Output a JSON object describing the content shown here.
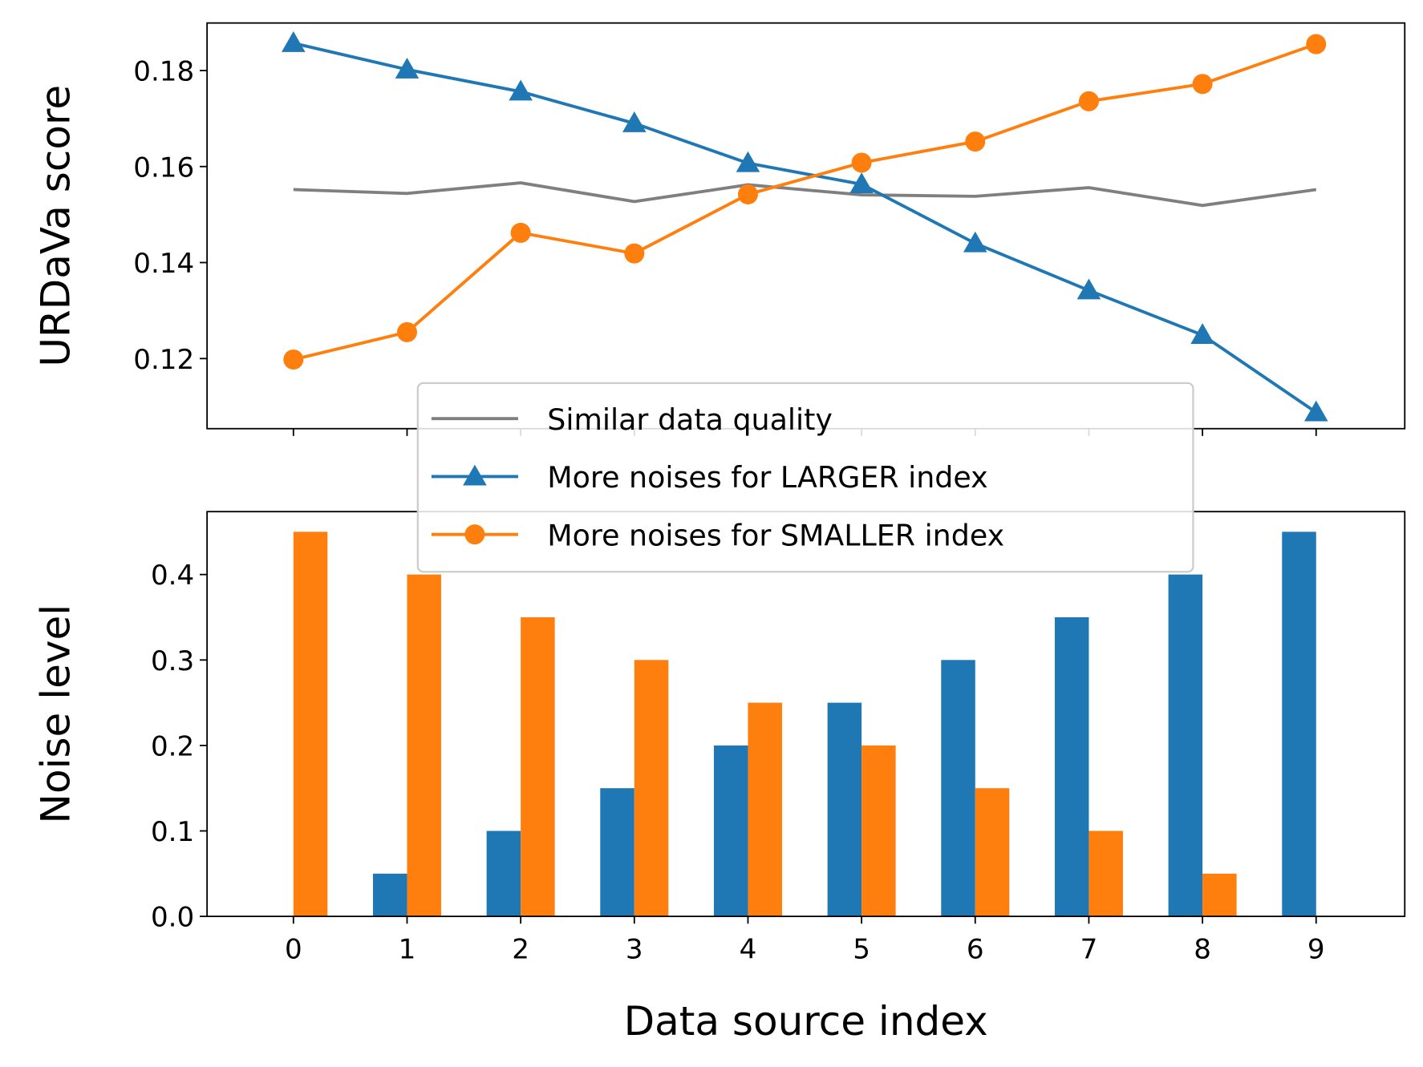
{
  "chart_data": [
    {
      "type": "line",
      "ylabel": "URDaVa score",
      "x": [
        0,
        1,
        2,
        3,
        4,
        5,
        6,
        7,
        8,
        9
      ],
      "xlim": [
        -0.76,
        9.78
      ],
      "xticks": [
        0,
        1,
        2,
        3,
        4,
        5,
        6,
        7,
        8,
        9
      ],
      "ylim": [
        0.1054,
        0.1899
      ],
      "yticks": [
        0.12,
        0.14,
        0.16,
        0.18
      ],
      "legend": "lower center",
      "series": [
        {
          "name": "Similar data quality",
          "color": "#7f7f7f",
          "marker": "none",
          "values": [
            0.1552,
            0.1544,
            0.1566,
            0.1527,
            0.1562,
            0.1541,
            0.1538,
            0.1556,
            0.1519,
            0.1552
          ]
        },
        {
          "name": "More noises for LARGER index",
          "color": "#1f77b4",
          "marker": "triangle",
          "values": [
            0.1857,
            0.1802,
            0.1756,
            0.169,
            0.1607,
            0.1563,
            0.144,
            0.1342,
            0.1249,
            0.1088
          ]
        },
        {
          "name": "More noises for SMALLER index",
          "color": "#ff7f0e",
          "marker": "circle",
          "values": [
            0.1198,
            0.1255,
            0.1462,
            0.1419,
            0.1542,
            0.1608,
            0.1652,
            0.1736,
            0.1772,
            0.1855
          ]
        }
      ]
    },
    {
      "type": "bar",
      "ylabel": "Noise level",
      "xlabel": "Data source index",
      "x": [
        0,
        1,
        2,
        3,
        4,
        5,
        6,
        7,
        8,
        9
      ],
      "xlim": [
        -0.76,
        9.78
      ],
      "xticks": [
        0,
        1,
        2,
        3,
        4,
        5,
        6,
        7,
        8,
        9
      ],
      "ylim": [
        0,
        0.4736
      ],
      "yticks": [
        {
          "value": 0,
          "label": "0.0"
        },
        0.1,
        0.2,
        0.3,
        0.4
      ],
      "series": [
        {
          "color": "#1f77b4",
          "values": [
            0,
            0.05,
            0.1,
            0.15,
            0.2,
            0.25,
            0.3,
            0.35,
            0.4,
            0.45
          ]
        },
        {
          "color": "#ff7f0e",
          "values": [
            0.45,
            0.4,
            0.35,
            0.3,
            0.25,
            0.2,
            0.15,
            0.1,
            0.05,
            0
          ]
        }
      ]
    }
  ]
}
